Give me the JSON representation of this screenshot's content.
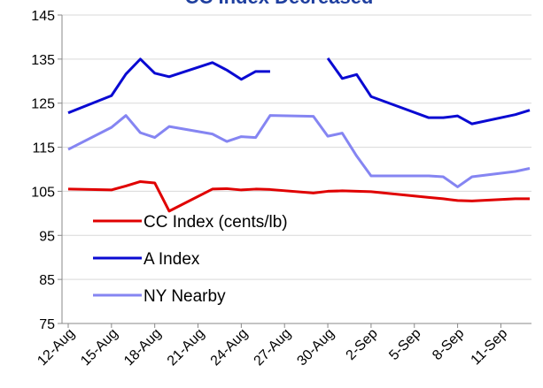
{
  "chart_data": {
    "type": "line",
    "title": "CC Index Decreased",
    "x": [
      "12-Aug",
      "15-Aug",
      "16-Aug",
      "17-Aug",
      "18-Aug",
      "19-Aug",
      "22-Aug",
      "23-Aug",
      "24-Aug",
      "25-Aug",
      "26-Aug",
      "29-Aug",
      "30-Aug",
      "31-Aug",
      "1-Sep",
      "2-Sep",
      "6-Sep",
      "7-Sep",
      "8-Sep",
      "9-Sep",
      "12-Sep",
      "13-Sep"
    ],
    "series": [
      {
        "name": "CC Index (cents/lb)",
        "color": "#e00000",
        "values": [
          105.5,
          105.3,
          106.2,
          107.2,
          106.9,
          100.5,
          105.5,
          105.6,
          105.3,
          105.5,
          105.4,
          104.6,
          105,
          105.1,
          105,
          104.9,
          103.6,
          103.3,
          102.9,
          102.8,
          103.3,
          103.3
        ]
      },
      {
        "name": "A Index",
        "color": "#0a0ad2",
        "values": [
          122.8,
          126.7,
          131.6,
          135,
          131.8,
          131,
          134.2,
          132.5,
          130.4,
          132.2,
          132.2,
          null,
          135.2,
          130.6,
          131.5,
          126.5,
          121.7,
          121.7,
          122.1,
          120.3,
          122.4,
          123.4
        ]
      },
      {
        "name": "NY Nearby",
        "color": "#8585f2",
        "values": [
          114.5,
          119.5,
          122.2,
          118.3,
          117.2,
          119.7,
          118,
          116.3,
          117.4,
          117.2,
          122.2,
          122,
          117.5,
          118.2,
          113,
          108.5,
          108.5,
          108.3,
          106,
          108.3,
          109.5,
          110.2
        ]
      }
    ],
    "xlim": [
      "12-Aug",
      "13-Sep"
    ],
    "xticks": [
      "12-Aug",
      "15-Aug",
      "18-Aug",
      "21-Aug",
      "24-Aug",
      "27-Aug",
      "30-Aug",
      "2-Sep",
      "5-Sep",
      "8-Sep",
      "11-Sep"
    ],
    "ylim": [
      75,
      145
    ],
    "yticks": [
      75,
      85,
      95,
      105,
      115,
      125,
      135,
      145
    ],
    "grid": true,
    "legend": "lower left"
  }
}
